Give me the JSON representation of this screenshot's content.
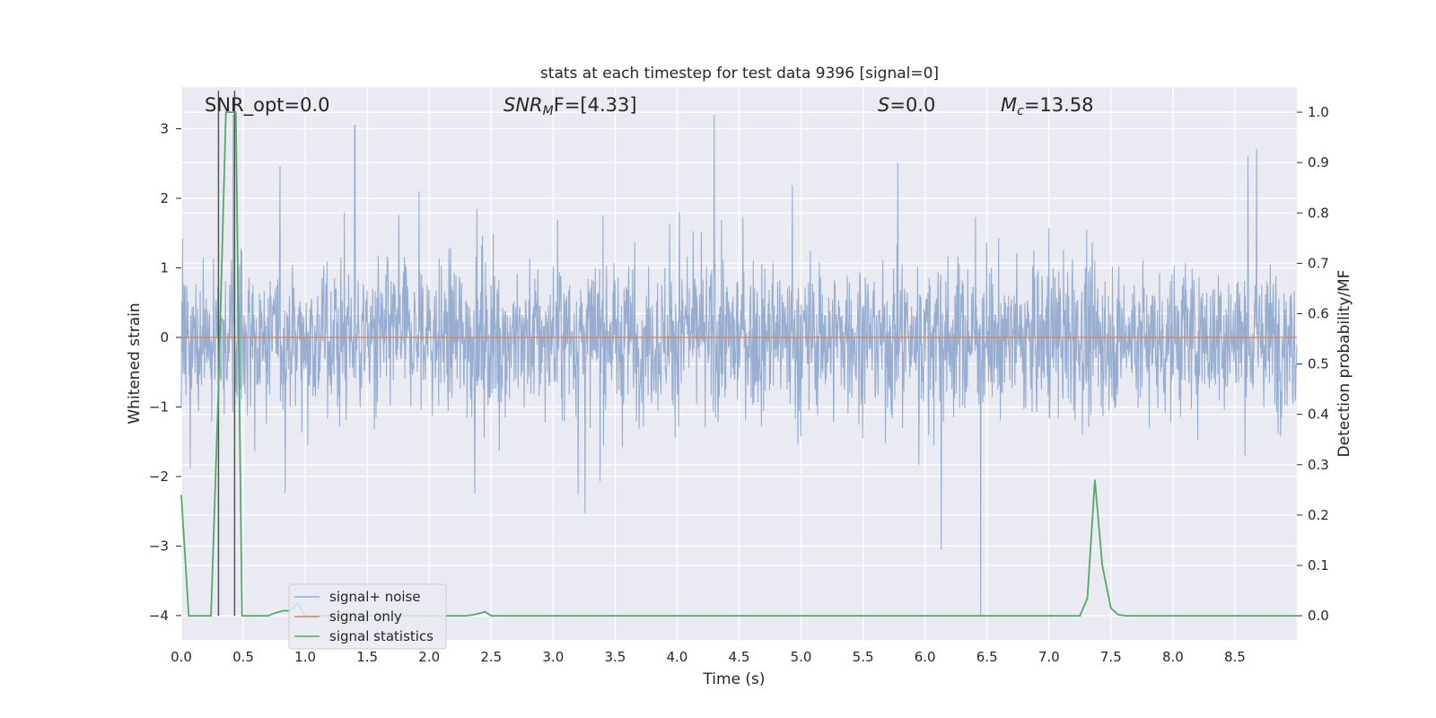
{
  "chart_data": {
    "type": "line",
    "title": "stats at each timestep for test data 9396 [signal=0]",
    "xlabel": "Time (s)",
    "ylabel": "Whitened strain",
    "ylabel_right": "Detection probability/MF",
    "xlim": [
      0.0,
      9.0
    ],
    "ylim": [
      -4.35,
      3.6
    ],
    "ylim_right": [
      -0.048,
      1.05
    ],
    "grid": true,
    "legend_position": "lower-left",
    "x_ticks": [
      "0.0",
      "0.5",
      "1.0",
      "1.5",
      "2.0",
      "2.5",
      "3.0",
      "3.5",
      "4.0",
      "4.5",
      "5.0",
      "5.5",
      "6.0",
      "6.5",
      "7.0",
      "7.5",
      "8.0",
      "8.5"
    ],
    "y_ticks_left": [
      "3",
      "2",
      "1",
      "0",
      "−1",
      "−2",
      "−3",
      "−4"
    ],
    "y_ticks_right": [
      "1.0",
      "0.9",
      "0.8",
      "0.7",
      "0.6",
      "0.5",
      "0.4",
      "0.3",
      "0.2",
      "0.1",
      "0.0"
    ],
    "annotations": {
      "snr_opt": "SNR_opt=0.0",
      "snr_mf_main": "SNR",
      "snr_mf_sub": "M",
      "snr_mf_rest": "F=[4.33]",
      "s_main": "S",
      "s_rest": "=0.0",
      "mc_main": "M",
      "mc_sub": "c",
      "mc_rest": "=13.58"
    },
    "series": [
      {
        "name": "signal+ noise",
        "color": "#98aed1",
        "axis": "left",
        "description_values": {
          "x_range": [
            0.0,
            9.0
          ],
          "typical_range": [
            -1.8,
            1.8
          ],
          "notable_peaks": [
            {
              "x": 4.3,
              "y": 3.2
            },
            {
              "x": 1.4,
              "y": 3.05
            },
            {
              "x": 0.42,
              "y": 3.2
            },
            {
              "x": 6.45,
              "y": -4.0
            },
            {
              "x": 6.13,
              "y": -3.05
            }
          ]
        }
      },
      {
        "name": "signal only",
        "color": "#dd8452",
        "axis": "left",
        "x": [
          0.0,
          9.0
        ],
        "values": [
          0.0,
          0.0
        ]
      },
      {
        "name": "signal statistics",
        "color": "#55a868",
        "axis": "right",
        "x": [
          0.0,
          0.06,
          0.12,
          0.18,
          0.24,
          0.3,
          0.36,
          0.4,
          0.44,
          0.49,
          0.52,
          0.58,
          0.64,
          0.7,
          0.75,
          0.82,
          0.88,
          0.94,
          1.0,
          1.1,
          1.3,
          1.6,
          2.0,
          2.3,
          2.38,
          2.45,
          2.5,
          3.0,
          4.0,
          5.0,
          6.0,
          7.0,
          7.25,
          7.31,
          7.37,
          7.43,
          7.5,
          7.56,
          7.62,
          8.0,
          8.5,
          9.0
        ],
        "values": [
          0.24,
          0.0,
          0.0,
          0.0,
          0.0,
          0.45,
          1.0,
          1.0,
          1.0,
          0.0,
          0.0,
          0.0,
          0.0,
          0.0,
          0.005,
          0.01,
          0.01,
          0.025,
          0.0,
          0.0,
          0.0,
          0.0,
          0.0,
          0.0,
          0.003,
          0.008,
          0.0,
          0.0,
          0.0,
          0.0,
          0.0,
          0.0,
          0.0,
          0.035,
          0.27,
          0.1,
          0.015,
          0.002,
          0.0,
          0.0,
          0.0,
          0.0
        ]
      }
    ],
    "vertical_lines": [
      {
        "x": 0.3,
        "color": "#555555"
      },
      {
        "x": 0.43,
        "color": "#555555"
      }
    ]
  }
}
